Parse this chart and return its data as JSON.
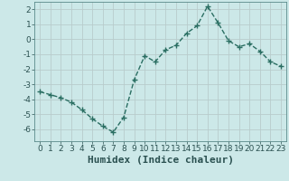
{
  "x": [
    0,
    1,
    2,
    3,
    4,
    5,
    6,
    7,
    8,
    9,
    10,
    11,
    12,
    13,
    14,
    15,
    16,
    17,
    18,
    19,
    20,
    21,
    22,
    23
  ],
  "y": [
    -3.5,
    -3.7,
    -3.9,
    -4.2,
    -4.7,
    -5.3,
    -5.8,
    -6.2,
    -5.2,
    -2.7,
    -1.1,
    -1.5,
    -0.7,
    -0.4,
    0.4,
    0.9,
    2.2,
    1.1,
    -0.1,
    -0.5,
    -0.3,
    -0.8,
    -1.5,
    -1.8
  ],
  "line_color": "#2a6e62",
  "marker": "+",
  "bg_color": "#cce8e8",
  "grid_color": "#b8cccc",
  "xlabel": "Humidex (Indice chaleur)",
  "xlim": [
    -0.5,
    23.5
  ],
  "ylim": [
    -6.8,
    2.5
  ],
  "yticks": [
    -6,
    -5,
    -4,
    -3,
    -2,
    -1,
    0,
    1,
    2
  ],
  "xticks": [
    0,
    1,
    2,
    3,
    4,
    5,
    6,
    7,
    8,
    9,
    10,
    11,
    12,
    13,
    14,
    15,
    16,
    17,
    18,
    19,
    20,
    21,
    22,
    23
  ],
  "fig_bg_color": "#cce8e8",
  "spine_color": "#5a8a8a",
  "tick_color": "#2a5050",
  "xlabel_fontsize": 8,
  "tick_fontsize": 6.5,
  "line_width": 1.0,
  "marker_size": 4
}
